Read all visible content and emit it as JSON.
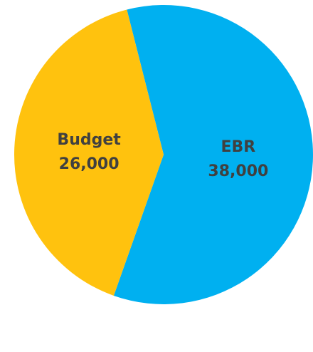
{
  "chart_data": {
    "type": "pie",
    "slices": [
      {
        "label": "EBR",
        "value": 38000,
        "display_value": "38,000",
        "color": "#00B0F0"
      },
      {
        "label": "Budget",
        "value": 26000,
        "display_value": "26,000",
        "color": "#FFC20E"
      }
    ],
    "label_color": "#404040",
    "legend": "none"
  }
}
